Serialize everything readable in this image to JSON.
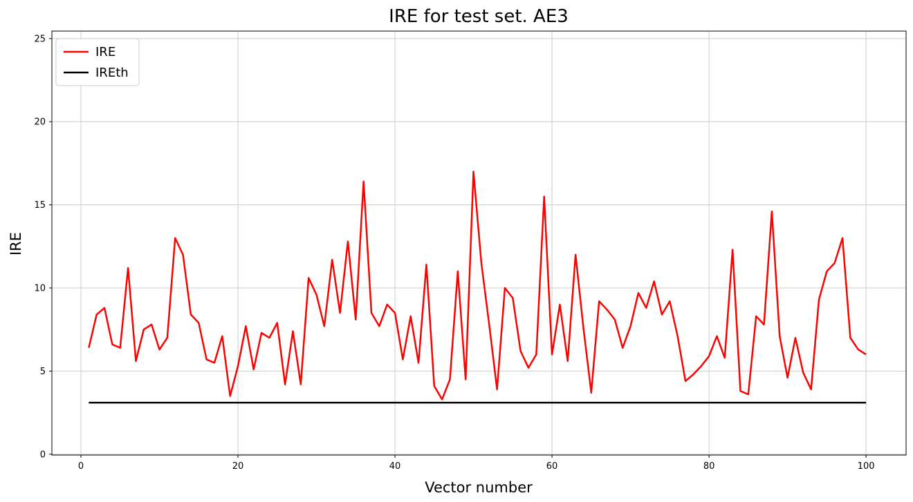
{
  "figure": {
    "title": "IRE for test set. AE3",
    "x_axis_label": "Vector number",
    "y_axis_label": "IRE",
    "background_color": "#ffffff",
    "grid_color": "#cccccc",
    "spine_color": "#000000"
  },
  "legend": {
    "items": [
      {
        "label": "IRE",
        "color": "#ff0000"
      },
      {
        "label": "IREth",
        "color": "#000000"
      }
    ]
  },
  "chart_data": {
    "type": "line",
    "title": "IRE for test set. AE3",
    "xlabel": "Vector number",
    "ylabel": "IRE",
    "xlim": [
      -3.7,
      105.1
    ],
    "ylim": [
      -0.05,
      25.45
    ],
    "x_ticks": [
      0,
      20,
      40,
      60,
      80,
      100
    ],
    "y_ticks": [
      0,
      5,
      10,
      15,
      20,
      25
    ],
    "grid": true,
    "legend_position": "upper left",
    "x_start": 1,
    "series": [
      {
        "name": "IRE",
        "color": "#ff0000",
        "line_width": 2.5,
        "values": [
          6.4,
          8.4,
          8.8,
          6.6,
          6.4,
          11.2,
          5.6,
          7.5,
          7.8,
          6.3,
          7.0,
          13.0,
          12.0,
          8.4,
          7.9,
          5.7,
          5.5,
          7.1,
          3.5,
          5.3,
          7.7,
          5.1,
          7.3,
          7.0,
          7.9,
          4.2,
          7.4,
          4.2,
          10.6,
          9.6,
          7.7,
          11.7,
          8.5,
          12.8,
          8.1,
          16.4,
          8.5,
          7.7,
          9.0,
          8.5,
          5.7,
          8.3,
          5.5,
          11.4,
          4.1,
          3.3,
          4.5,
          11.0,
          4.5,
          17.0,
          11.5,
          7.8,
          3.9,
          10.0,
          9.4,
          6.2,
          5.2,
          6.0,
          15.5,
          6.0,
          9.0,
          5.6,
          12.0,
          7.6,
          3.7,
          9.2,
          8.7,
          8.1,
          6.4,
          7.7,
          9.7,
          8.8,
          10.4,
          8.4,
          9.2,
          7.1,
          4.4,
          4.8,
          5.3,
          5.9,
          7.1,
          5.8,
          12.3,
          3.8,
          3.6,
          8.3,
          7.8,
          14.6,
          7.1,
          4.6,
          7.0,
          4.9,
          3.9,
          9.3,
          11.0,
          11.5,
          13.0,
          7.0,
          6.3,
          6.0
        ]
      },
      {
        "name": "IREth",
        "color": "#000000",
        "line_width": 2.5,
        "constant": 3.1,
        "x_range": [
          1,
          100
        ]
      }
    ]
  }
}
